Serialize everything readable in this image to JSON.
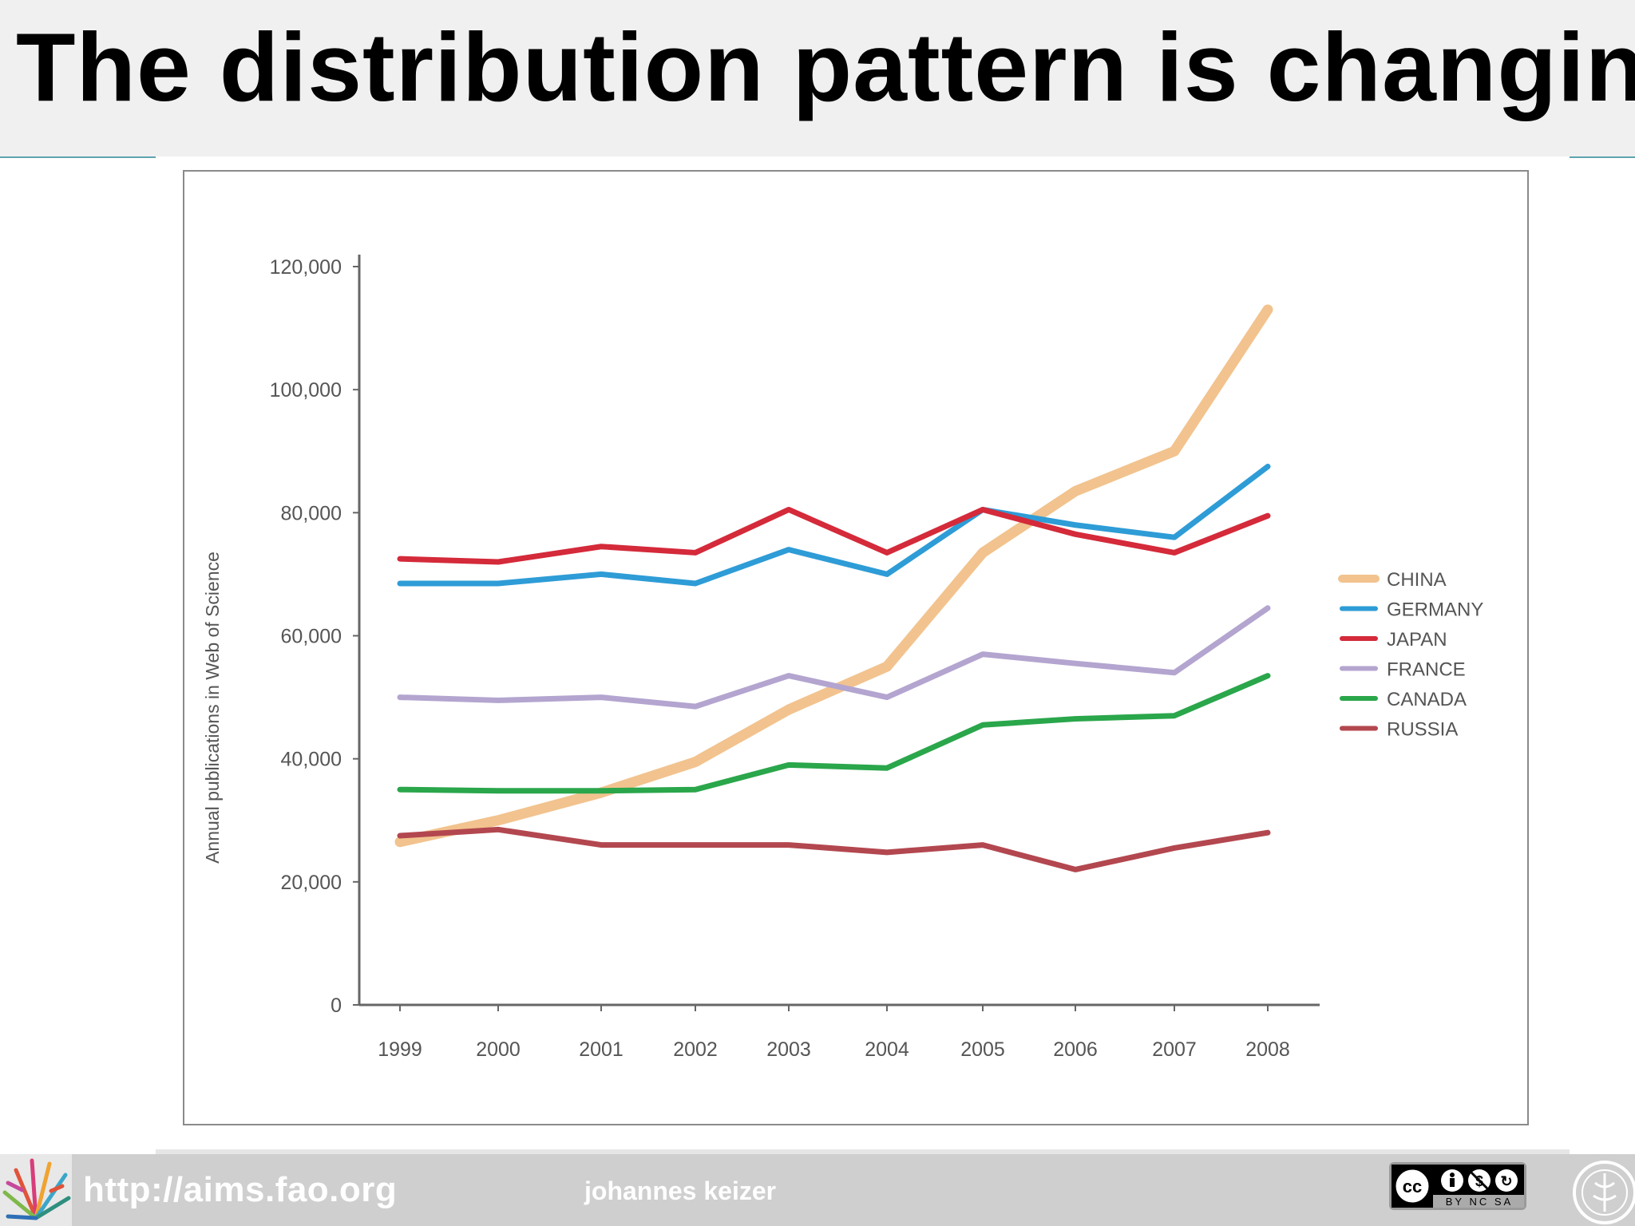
{
  "slide": {
    "title": "The distribution pattern is changing"
  },
  "footer": {
    "url": "http://aims.fao.org",
    "author": "johannes keizer",
    "license_badge": "cc-by-nc-sa-badge",
    "license_text": "BY NC SA"
  },
  "chart_data": {
    "type": "line",
    "title": "",
    "xlabel": "",
    "ylabel": "Annual publications in Web of Science",
    "x": [
      "1999",
      "2000",
      "2001",
      "2002",
      "2003",
      "2004",
      "2005",
      "2006",
      "2007",
      "2008"
    ],
    "ylim": [
      0,
      120000
    ],
    "yticks": [
      0,
      20000,
      40000,
      60000,
      80000,
      100000,
      120000
    ],
    "ytick_labels": [
      "0",
      "20,000",
      "40,000",
      "60,000",
      "80,000",
      "100,000",
      "120,000"
    ],
    "grid": false,
    "legend_position": "right",
    "series": [
      {
        "name": "CHINA",
        "color": "#f2c38e",
        "values": [
          26500,
          30000,
          34500,
          39500,
          48000,
          55000,
          73500,
          83500,
          90000,
          113000
        ]
      },
      {
        "name": "GERMANY",
        "color": "#2e9cd6",
        "values": [
          68500,
          68500,
          70000,
          68500,
          74000,
          70000,
          80500,
          78000,
          76000,
          87500
        ]
      },
      {
        "name": "JAPAN",
        "color": "#d42a3a",
        "values": [
          72500,
          72000,
          74500,
          73500,
          80500,
          73500,
          80500,
          76500,
          73500,
          79500
        ]
      },
      {
        "name": "FRANCE",
        "color": "#b3a5cf",
        "values": [
          50000,
          49500,
          50000,
          48500,
          53500,
          50000,
          57000,
          55500,
          54000,
          64500
        ]
      },
      {
        "name": "CANADA",
        "color": "#2aa64b",
        "values": [
          35000,
          34800,
          34800,
          35000,
          39000,
          38500,
          45500,
          46500,
          47000,
          53500
        ]
      },
      {
        "name": "RUSSIA",
        "color": "#b3474f",
        "values": [
          27500,
          28500,
          26000,
          26000,
          26000,
          24800,
          26000,
          22000,
          25500,
          28000
        ]
      }
    ]
  }
}
